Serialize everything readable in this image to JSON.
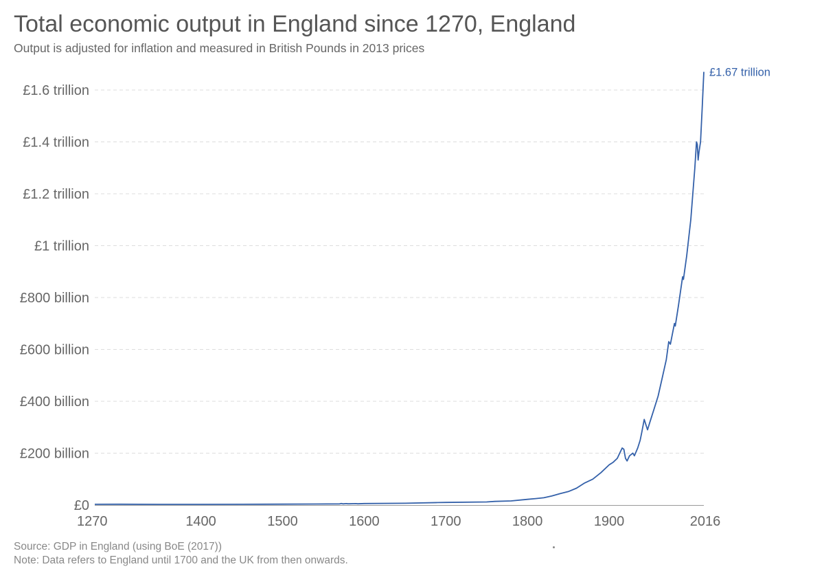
{
  "header": {
    "title": "Total economic output in England since 1270, England",
    "subtitle": "Output is adjusted for inflation and measured in British Pounds in 2013 prices"
  },
  "footer": {
    "source": "Source: GDP in England (using BoE (2017))",
    "note": "Note: Data refers to England until 1700 and the UK from then onwards."
  },
  "chart_data": {
    "type": "line",
    "title": "Total economic output in England since 1270, England",
    "subtitle": "Output is adjusted for inflation and measured in British Pounds in 2013 prices",
    "unit": "£ (2013 prices)",
    "grid": true,
    "line_color": "#3360a9",
    "xlim": [
      1270,
      2016
    ],
    "ylim": [
      0,
      1600000000000
    ],
    "x_ticks": [
      1270,
      1400,
      1500,
      1600,
      1700,
      1800,
      1900,
      2016
    ],
    "y_ticks": [
      {
        "value": 0,
        "label": "£0"
      },
      {
        "value": 200000000000,
        "label": "£200 billion"
      },
      {
        "value": 400000000000,
        "label": "£400 billion"
      },
      {
        "value": 600000000000,
        "label": "£600 billion"
      },
      {
        "value": 800000000000,
        "label": "£800 billion"
      },
      {
        "value": 1000000000000,
        "label": "£1 trillion"
      },
      {
        "value": 1200000000000,
        "label": "£1.2 trillion"
      },
      {
        "value": 1400000000000,
        "label": "£1.4 trillion"
      },
      {
        "value": 1600000000000,
        "label": "£1.6 trillion"
      }
    ],
    "end_label": "£1.67 trillion",
    "series": [
      {
        "unit": "billion £",
        "points": [
          [
            1270,
            2.9
          ],
          [
            1300,
            3.1
          ],
          [
            1350,
            2.7
          ],
          [
            1400,
            2.6
          ],
          [
            1450,
            2.8
          ],
          [
            1500,
            3.4
          ],
          [
            1540,
            3.9
          ],
          [
            1570,
            4.5
          ],
          [
            1572,
            6.0
          ],
          [
            1574,
            4.5
          ],
          [
            1578,
            5.5
          ],
          [
            1580,
            4.8
          ],
          [
            1590,
            5.5
          ],
          [
            1592,
            4.8
          ],
          [
            1600,
            5.8
          ],
          [
            1650,
            7.0
          ],
          [
            1690,
            9.5
          ],
          [
            1700,
            10
          ],
          [
            1750,
            12
          ],
          [
            1760,
            14
          ],
          [
            1780,
            16
          ],
          [
            1800,
            22
          ],
          [
            1810,
            25
          ],
          [
            1820,
            28
          ],
          [
            1830,
            35
          ],
          [
            1840,
            44
          ],
          [
            1850,
            52
          ],
          [
            1860,
            65
          ],
          [
            1870,
            85
          ],
          [
            1880,
            100
          ],
          [
            1890,
            125
          ],
          [
            1900,
            155
          ],
          [
            1905,
            165
          ],
          [
            1910,
            180
          ],
          [
            1913,
            200
          ],
          [
            1916,
            220
          ],
          [
            1918,
            215
          ],
          [
            1920,
            180
          ],
          [
            1922,
            170
          ],
          [
            1925,
            190
          ],
          [
            1929,
            200
          ],
          [
            1931,
            190
          ],
          [
            1935,
            220
          ],
          [
            1938,
            250
          ],
          [
            1940,
            280
          ],
          [
            1943,
            330
          ],
          [
            1945,
            310
          ],
          [
            1947,
            290
          ],
          [
            1950,
            320
          ],
          [
            1955,
            370
          ],
          [
            1960,
            420
          ],
          [
            1965,
            490
          ],
          [
            1970,
            560
          ],
          [
            1973,
            630
          ],
          [
            1975,
            620
          ],
          [
            1980,
            700
          ],
          [
            1981,
            690
          ],
          [
            1985,
            770
          ],
          [
            1990,
            880
          ],
          [
            1991,
            870
          ],
          [
            1995,
            960
          ],
          [
            2000,
            1100
          ],
          [
            2005,
            1300
          ],
          [
            2007,
            1400
          ],
          [
            2008,
            1390
          ],
          [
            2009,
            1330
          ],
          [
            2010,
            1360
          ],
          [
            2012,
            1400
          ],
          [
            2014,
            1530
          ],
          [
            2016,
            1670
          ]
        ]
      }
    ]
  }
}
